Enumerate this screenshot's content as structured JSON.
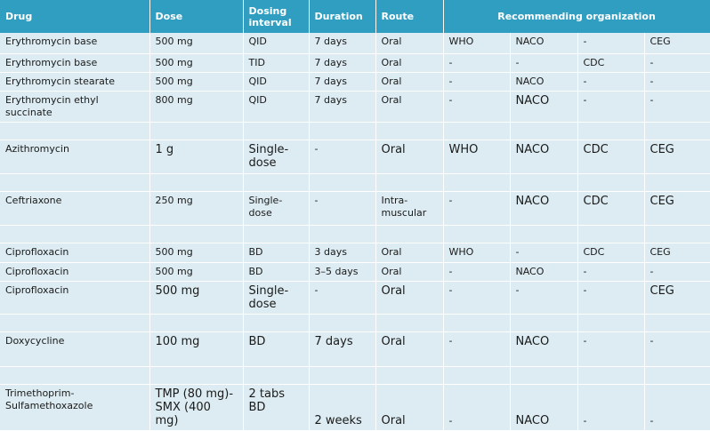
{
  "headers": {
    "drug": "Drug",
    "dose": "Dose",
    "interval": "Dosing interval",
    "duration": "Duration",
    "route": "Route",
    "org": "Recommending organization"
  },
  "rows": [
    {
      "drug": "Erythromycin base",
      "dose": "500 mg",
      "interval": "QID",
      "duration": "7 days",
      "route": "Oral",
      "o1": "WHO",
      "o2": "NACO",
      "o3": "-",
      "o4": "CEG"
    },
    {
      "drug": "Erythromycin base",
      "dose": "500 mg",
      "interval": "TID",
      "duration": "7 days",
      "route": "Oral",
      "o1": "-",
      "o2": "-",
      "o3": "CDC",
      "o4": "-"
    },
    {
      "drug": "Erythromycin stearate",
      "dose": "500 mg",
      "interval": "QID",
      "duration": "7 days",
      "route": "Oral",
      "o1": "-",
      "o2": "NACO",
      "o3": "-",
      "o4": "-"
    },
    {
      "drug": "Erythromycin ethyl succinate",
      "dose": "800 mg",
      "interval": "QID",
      "duration": "7 days",
      "route": "Oral",
      "o1": "-",
      "o2": "NACO",
      "o3": "-",
      "o4": "-"
    },
    {
      "drug": "Azithromycin",
      "dose": "1 g",
      "interval": "Single-dose",
      "duration": "-",
      "route": "Oral",
      "o1": "WHO",
      "o2": "NACO",
      "o3": "CDC",
      "o4": "CEG"
    },
    {
      "drug": "Ceftriaxone",
      "dose": "250 mg",
      "interval": "Single-dose",
      "duration": "-",
      "route": "Intra-muscular",
      "o1": "-",
      "o2": "NACO",
      "o3": "CDC",
      "o4": "CEG"
    },
    {
      "drug": "Ciprofloxacin",
      "dose": "500 mg",
      "interval": "BD",
      "duration": "3 days",
      "route": "Oral",
      "o1": "WHO",
      "o2": "-",
      "o3": "CDC",
      "o4": "CEG"
    },
    {
      "drug": "Ciprofloxacin",
      "dose": "500 mg",
      "interval": "BD",
      "duration": "3–5 days",
      "route": "Oral",
      "o1": "-",
      "o2": "NACO",
      "o3": "-",
      "o4": "-"
    },
    {
      "drug": "Ciprofloxacin",
      "dose": "500 mg",
      "interval": "Single-dose",
      "duration": "-",
      "route": "Oral",
      "o1": "-",
      "o2": "-",
      "o3": "-",
      "o4": "CEG"
    },
    {
      "drug": "Doxycycline",
      "dose": "100 mg",
      "interval": "BD",
      "duration": "7 days",
      "route": "Oral",
      "o1": "-",
      "o2": "NACO",
      "o3": "-",
      "o4": "-"
    },
    {
      "drug": "Trimethoprim-Sulfamethoxazole",
      "dose": "TMP (80 mg)-SMX (400 mg)",
      "interval": "2 tabs BD",
      "duration": "2 weeks",
      "route": "Oral",
      "o1": "-",
      "o2": "NACO",
      "o3": "-",
      "o4": "-"
    }
  ]
}
